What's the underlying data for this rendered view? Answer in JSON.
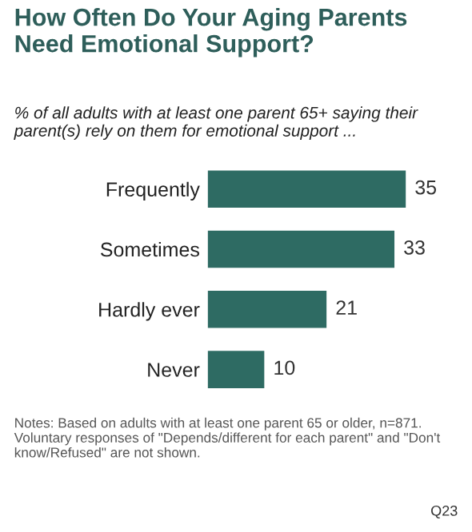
{
  "chart_data": {
    "type": "bar",
    "orientation": "horizontal",
    "title": "How Often Do Your Aging Parents Need Emotional Support?",
    "subtitle": "% of all adults with at least one parent 65+ saying their parent(s) rely on them for emotional support ...",
    "categories": [
      "Frequently",
      "Sometimes",
      "Hardly ever",
      "Never"
    ],
    "values": [
      35,
      33,
      21,
      10
    ],
    "color": "#2e6b63",
    "data_labels": true,
    "tick_labels": "y",
    "grid": false,
    "legend": false,
    "annotations": [
      "Notes: Based on adults with at least one parent 65 or older, n=871. Voluntary responses of \"Depends/different for each parent\" and \"Don't know/Refused\" are not shown.",
      "Q23"
    ]
  }
}
